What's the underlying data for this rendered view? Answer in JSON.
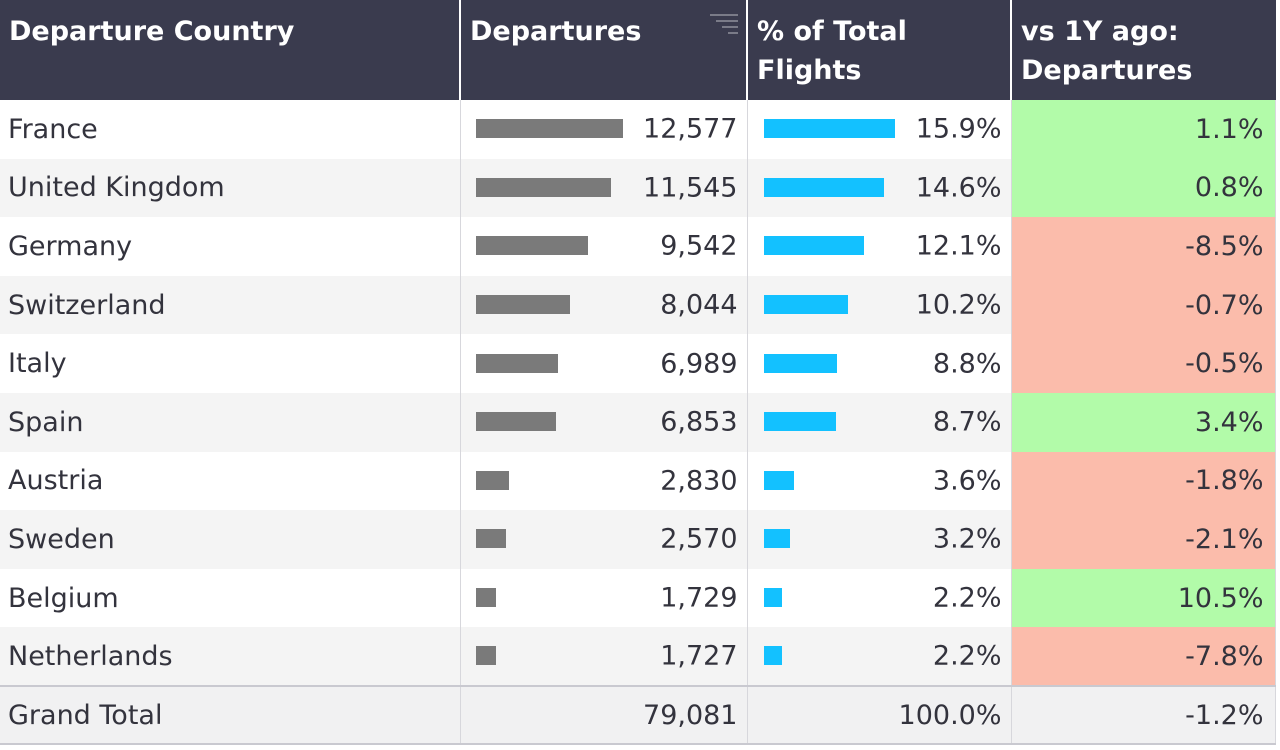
{
  "colors": {
    "header_bg": "#3a3b4e",
    "departures_bar": "#7a7a7a",
    "percent_bar": "#13c1ff",
    "positive_bg": "#b2fba9",
    "negative_bg": "#fbbcab"
  },
  "columns": {
    "country": "Departure Country",
    "departures": "Departures",
    "pct_line1": "% of Total",
    "pct_line2": "Flights",
    "vs_line1": "vs 1Y ago:",
    "vs_line2": "Departures"
  },
  "header_icons": {
    "departures_sort": "sort-icon"
  },
  "rows": [
    {
      "country": "France",
      "departures": "12,577",
      "departures_value": 12577,
      "pct": "15.9%",
      "pct_value": 15.9,
      "change": "1.1%",
      "change_value": 1.1
    },
    {
      "country": "United Kingdom",
      "departures": "11,545",
      "departures_value": 11545,
      "pct": "14.6%",
      "pct_value": 14.6,
      "change": "0.8%",
      "change_value": 0.8
    },
    {
      "country": "Germany",
      "departures": "9,542",
      "departures_value": 9542,
      "pct": "12.1%",
      "pct_value": 12.1,
      "change": "-8.5%",
      "change_value": -8.5
    },
    {
      "country": "Switzerland",
      "departures": "8,044",
      "departures_value": 8044,
      "pct": "10.2%",
      "pct_value": 10.2,
      "change": "-0.7%",
      "change_value": -0.7
    },
    {
      "country": "Italy",
      "departures": "6,989",
      "departures_value": 6989,
      "pct": "8.8%",
      "pct_value": 8.8,
      "change": "-0.5%",
      "change_value": -0.5
    },
    {
      "country": "Spain",
      "departures": "6,853",
      "departures_value": 6853,
      "pct": "8.7%",
      "pct_value": 8.7,
      "change": "3.4%",
      "change_value": 3.4
    },
    {
      "country": "Austria",
      "departures": "2,830",
      "departures_value": 2830,
      "pct": "3.6%",
      "pct_value": 3.6,
      "change": "-1.8%",
      "change_value": -1.8
    },
    {
      "country": "Sweden",
      "departures": "2,570",
      "departures_value": 2570,
      "pct": "3.2%",
      "pct_value": 3.2,
      "change": "-2.1%",
      "change_value": -2.1
    },
    {
      "country": "Belgium",
      "departures": "1,729",
      "departures_value": 1729,
      "pct": "2.2%",
      "pct_value": 2.2,
      "change": "10.5%",
      "change_value": 10.5
    },
    {
      "country": "Netherlands",
      "departures": "1,727",
      "departures_value": 1727,
      "pct": "2.2%",
      "pct_value": 2.2,
      "change": "-7.8%",
      "change_value": -7.8
    }
  ],
  "total": {
    "label": "Grand Total",
    "departures": "79,081",
    "pct": "100.0%",
    "change": "-1.2%"
  }
}
